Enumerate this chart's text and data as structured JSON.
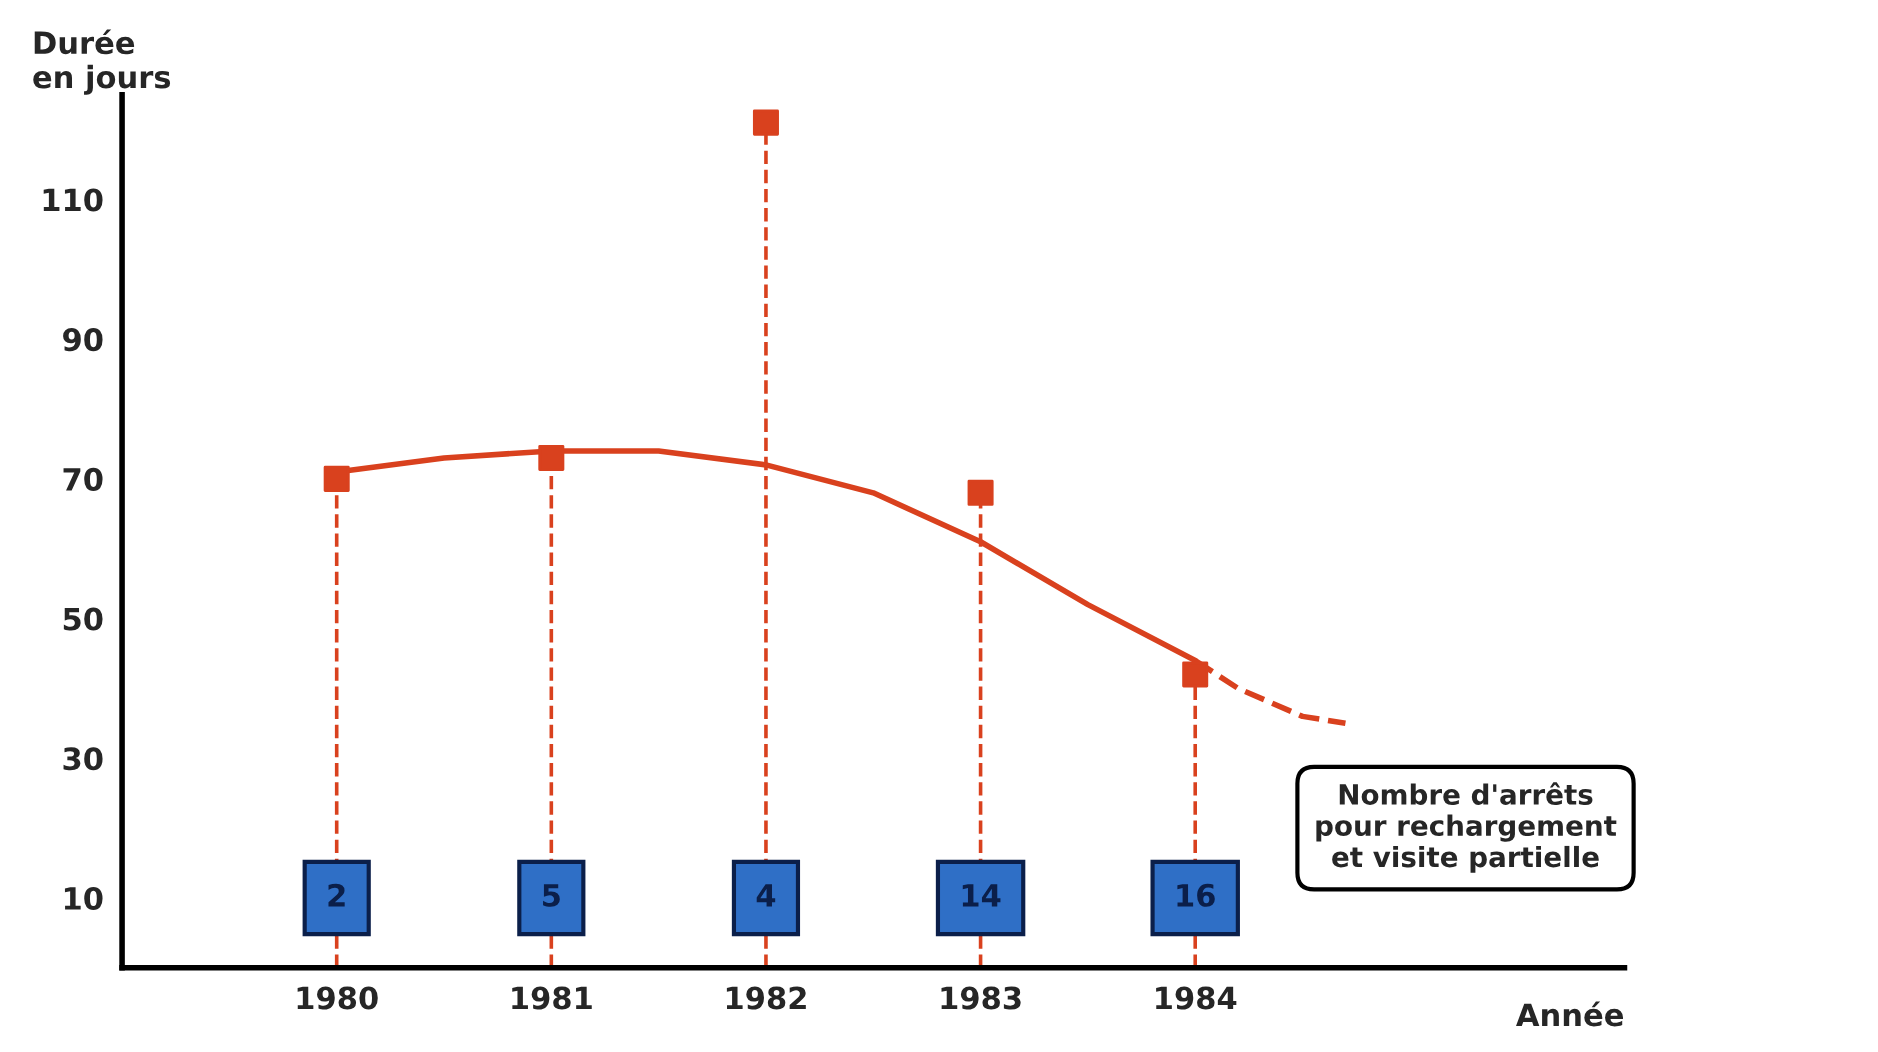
{
  "chart_data": {
    "type": "lollipop",
    "ylabel": "Durée\nen jours",
    "xlabel": "Année",
    "x": [
      1980,
      1981,
      1982,
      1983,
      1984
    ],
    "series": [
      {
        "color": "#d9411e",
        "values": [
          70,
          73,
          121,
          68,
          42
        ],
        "marker": "square",
        "line_style": "dashed"
      },
      {
        "type": "line",
        "color": "#d9411e",
        "x": [
          1980,
          1980.5,
          1981,
          1981.5,
          1982,
          1982.5,
          1983,
          1983.5,
          1984
        ],
        "values": [
          71,
          73,
          74,
          74,
          72,
          68,
          61,
          52,
          44
        ],
        "line_style": "solid",
        "marker": "none"
      },
      {
        "type": "line",
        "color": "#d9411e",
        "x": [
          1984,
          1984.2,
          1984.5,
          1984.7
        ],
        "values": [
          44,
          40,
          36,
          35
        ],
        "line_style": "dashed",
        "marker": "none"
      }
    ],
    "xlim": [
      1979,
      1986
    ],
    "xticks": [
      1980,
      1981,
      1982,
      1983,
      1984
    ],
    "ylim": [
      0,
      125
    ],
    "yticks": [
      10,
      30,
      50,
      70,
      90,
      110
    ],
    "grid": false,
    "annotations": [
      {
        "text": "2",
        "x": 1980,
        "y": 10
      },
      {
        "text": "5",
        "x": 1981,
        "y": 10
      },
      {
        "text": "4",
        "x": 1982,
        "y": 10
      },
      {
        "text": "14",
        "x": 1983,
        "y": 10
      },
      {
        "text": "16",
        "x": 1984,
        "y": 10
      },
      "Nombre d'arrêts\npour rechargement\net visite partielle"
    ]
  }
}
